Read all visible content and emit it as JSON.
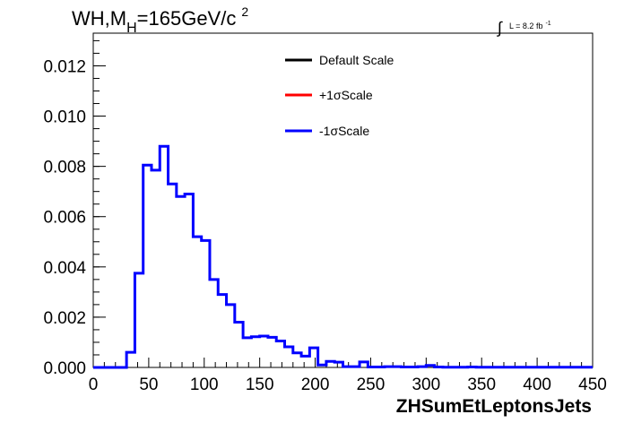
{
  "title": {
    "prefix": "WH,M",
    "subscript": "H",
    "mass": "=165GeV/c",
    "superscript": "2"
  },
  "lumi": {
    "integral": "∫",
    "text": "L = 8.2 fb",
    "superscript": "-1"
  },
  "legend": [
    {
      "label": "Default Scale",
      "color": "#000000"
    },
    {
      "label": "+1σScale",
      "color": "#ff0000"
    },
    {
      "label": "-1σScale",
      "color": "#0000ff"
    }
  ],
  "chart_data": {
    "type": "line",
    "xlabel": "ZHSumEtLeptonsJets",
    "ylabel": "",
    "xlim": [
      0,
      450
    ],
    "ylim": [
      0,
      0.0133
    ],
    "x_ticks": [
      0,
      50,
      100,
      150,
      200,
      250,
      300,
      350,
      400,
      450
    ],
    "x_tick_labels": [
      "0",
      "50",
      "100",
      "150",
      "200",
      "250",
      "300",
      "350",
      "400",
      "450"
    ],
    "y_ticks": [
      0,
      0.002,
      0.004,
      0.006,
      0.008,
      0.01,
      0.012
    ],
    "y_tick_labels": [
      "0.000",
      "0.002",
      "0.004",
      "0.006",
      "0.008",
      "0.010",
      "0.012"
    ],
    "grid": false,
    "legend_position": "top-center",
    "bin_width": 7.5,
    "bin_start": 0,
    "series": [
      {
        "name": "-1σScale",
        "color": "#0000ff",
        "values": [
          0,
          0,
          0,
          0,
          0.0006,
          0.00375,
          0.00805,
          0.00785,
          0.0088,
          0.0073,
          0.0068,
          0.0069,
          0.0052,
          0.00505,
          0.0035,
          0.0029,
          0.0025,
          0.0018,
          0.00118,
          0.00122,
          0.00125,
          0.0012,
          0.00105,
          0.00082,
          0.00058,
          0.00045,
          0.00078,
          0.0001,
          0.00024,
          0.00021,
          3e-05,
          3e-05,
          0.00022,
          2e-05,
          2e-05,
          3e-05,
          3e-05,
          2e-05,
          2e-05,
          3e-05,
          8e-05,
          2e-05,
          1e-05,
          1e-05,
          1e-05,
          2e-05,
          1e-05,
          1e-05,
          1e-05,
          1e-05,
          1e-05,
          1e-05,
          1e-05,
          1e-05,
          1e-05,
          1e-05,
          1e-05,
          1e-05,
          1e-05,
          1e-05
        ]
      }
    ]
  }
}
